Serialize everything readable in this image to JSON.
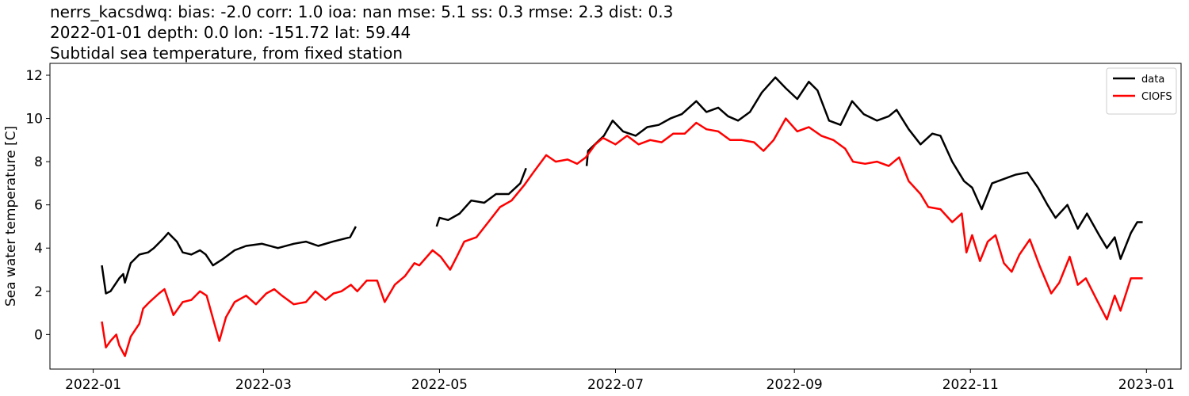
{
  "chart_data": {
    "type": "line",
    "title_lines": [
      "nerrs_kacsdwq: bias: -2.0  corr: 1.0  ioa: nan  mse: 5.1  ss: 0.3  rmse: 2.3  dist: 0.3",
      "2022-01-01 depth: 0.0 lon: -151.72 lat: 59.44",
      "Subtidal sea temperature, from fixed station"
    ],
    "ylabel": "Sea water temperature [C]",
    "xlim": [
      -15,
      377
    ],
    "xticks": [
      {
        "value": 0,
        "label": "2022-01"
      },
      {
        "value": 59,
        "label": "2022-03"
      },
      {
        "value": 120,
        "label": "2022-05"
      },
      {
        "value": 181,
        "label": "2022-07"
      },
      {
        "value": 243,
        "label": "2022-09"
      },
      {
        "value": 304,
        "label": "2022-11"
      },
      {
        "value": 365,
        "label": "2023-01"
      }
    ],
    "ylim": [
      -1.6,
      12.55
    ],
    "yticks": [
      0,
      2,
      4,
      6,
      8,
      10,
      12
    ],
    "legend": "upper right",
    "grid": false,
    "series": [
      {
        "name": "data",
        "color": "#000000",
        "x": [
          3,
          4.4,
          6,
          9,
          10.4,
          11,
          13,
          16,
          19,
          21,
          24,
          26,
          29,
          31,
          34,
          37,
          39,
          41.5,
          45,
          49,
          53,
          58.5,
          64,
          69.5,
          73.7,
          78,
          83,
          89,
          91,
          105,
          119,
          120,
          123,
          127,
          131,
          135.5,
          139.6,
          144,
          148,
          150,
          160,
          171,
          171.5,
          177,
          180,
          183.6,
          188,
          192,
          196,
          200,
          204,
          209,
          212.5,
          216.6,
          220,
          223.5,
          227.6,
          231.7,
          236.4,
          240,
          244,
          248,
          251,
          255,
          259,
          263,
          267,
          271.6,
          275.7,
          278.4,
          282.6,
          286.7,
          290.8,
          293.6,
          297.7,
          301.8,
          304.6,
          307.9,
          311.5,
          315.6,
          319.7,
          323.8,
          327.4,
          330.7,
          333.5,
          337.6,
          341.2,
          344.4,
          348.6,
          351.3,
          354,
          356,
          359.6,
          361.8,
          363.7
        ],
        "values": [
          3.2,
          1.9,
          2.0,
          2.6,
          2.8,
          2.4,
          3.3,
          3.7,
          3.8,
          4.0,
          4.4,
          4.7,
          4.3,
          3.8,
          3.7,
          3.9,
          3.7,
          3.2,
          3.5,
          3.9,
          4.1,
          4.2,
          4.0,
          4.2,
          4.3,
          4.1,
          4.3,
          4.5,
          5.0,
          null,
          5.0,
          5.4,
          5.3,
          5.6,
          6.2,
          6.1,
          6.5,
          6.5,
          7.0,
          7.7,
          null,
          7.8,
          8.5,
          9.2,
          9.9,
          9.4,
          9.2,
          9.6,
          9.7,
          10.0,
          10.2,
          10.8,
          10.3,
          10.5,
          10.1,
          9.9,
          10.3,
          11.2,
          11.9,
          11.4,
          10.9,
          11.7,
          11.3,
          9.9,
          9.7,
          10.8,
          10.2,
          9.9,
          10.1,
          10.4,
          9.5,
          8.8,
          9.3,
          9.2,
          8.0,
          7.1,
          6.8,
          5.8,
          7.0,
          7.2,
          7.4,
          7.5,
          6.8,
          6.0,
          5.4,
          6.0,
          4.9,
          5.6,
          4.6,
          4.0,
          4.5,
          3.5,
          4.7,
          5.2,
          5.2
        ]
      },
      {
        "name": "CIOFS",
        "color": "#ff0000",
        "x": [
          3,
          4.4,
          6,
          8,
          9,
          11,
          13,
          16,
          17.3,
          19.5,
          22.8,
          24.7,
          27.8,
          31,
          34,
          37,
          39.3,
          42,
          43.7,
          46,
          49,
          53,
          56.4,
          60,
          62.7,
          65.4,
          69.5,
          73.7,
          77,
          80.5,
          83.3,
          86,
          89.3,
          91.5,
          94.8,
          98.4,
          101,
          104.5,
          108,
          111.3,
          113,
          117.6,
          120.4,
          123.7,
          126,
          128.6,
          132.8,
          136.9,
          141,
          145,
          149.3,
          152.5,
          157,
          160.3,
          164.4,
          167.7,
          170.7,
          174,
          176.7,
          181,
          185,
          189,
          193,
          197,
          201,
          205,
          209,
          212.5,
          216.6,
          220.7,
          224.8,
          229,
          232.3,
          235.8,
          240,
          244,
          248,
          252.3,
          256.5,
          260.6,
          263.3,
          267.5,
          271.6,
          275.7,
          279.3,
          282.6,
          286.7,
          289.4,
          293.6,
          297.7,
          301,
          302.6,
          304.6,
          307.3,
          310,
          312.7,
          315.6,
          318.3,
          321,
          324.6,
          327.9,
          332,
          334.8,
          338.4,
          341.2,
          344,
          347.8,
          351.3,
          354,
          356,
          359.6,
          363.7
        ],
        "values": [
          0.6,
          -0.6,
          -0.3,
          0.0,
          -0.5,
          -1.0,
          -0.1,
          0.5,
          1.2,
          1.5,
          1.9,
          2.1,
          0.9,
          1.5,
          1.6,
          2.0,
          1.8,
          0.5,
          -0.3,
          0.8,
          1.5,
          1.8,
          1.4,
          1.9,
          2.1,
          1.8,
          1.4,
          1.5,
          2.0,
          1.6,
          1.9,
          2.0,
          2.3,
          2.0,
          2.5,
          2.5,
          1.5,
          2.3,
          2.7,
          3.3,
          3.2,
          3.9,
          3.6,
          3.0,
          3.6,
          4.3,
          4.5,
          5.2,
          5.9,
          6.2,
          6.9,
          7.5,
          8.3,
          8.0,
          8.1,
          7.9,
          8.2,
          8.8,
          9.1,
          8.8,
          9.2,
          8.8,
          9.0,
          8.9,
          9.3,
          9.3,
          9.8,
          9.5,
          9.4,
          9.0,
          9.0,
          8.9,
          8.5,
          9.0,
          10.0,
          9.4,
          9.6,
          9.2,
          9.0,
          8.6,
          8.0,
          7.9,
          8.0,
          7.8,
          8.2,
          7.1,
          6.5,
          5.9,
          5.8,
          5.2,
          5.6,
          3.8,
          4.6,
          3.4,
          4.3,
          4.6,
          3.3,
          2.9,
          3.7,
          4.4,
          3.2,
          1.9,
          2.4,
          3.6,
          2.3,
          2.6,
          1.6,
          0.7,
          1.8,
          1.1,
          2.6,
          2.6
        ]
      }
    ]
  }
}
